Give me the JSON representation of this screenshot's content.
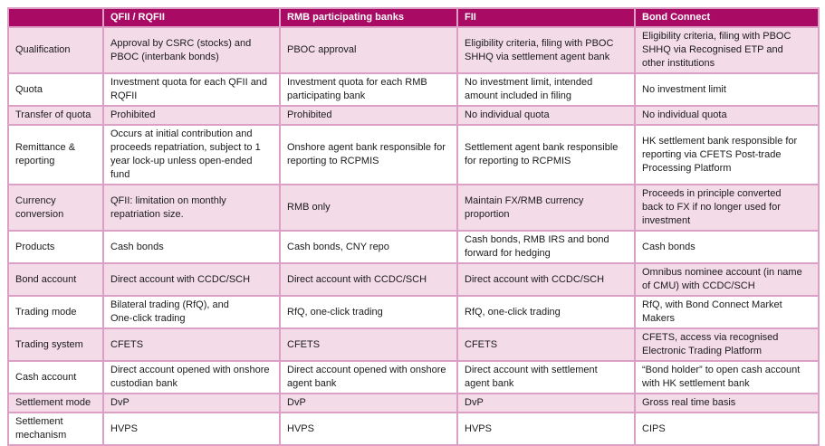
{
  "colors": {
    "header_bg": "#A80A64",
    "header_text": "#FFFFFF",
    "row_pink": "#F4DBE8",
    "row_white": "#FFFFFF",
    "border": "#DCA0C6",
    "body_text": "#1A1A1A"
  },
  "table": {
    "columns": {
      "label": "",
      "col1": "QFII / RQFII",
      "col2": "RMB participating banks",
      "col3": "FII",
      "col4": "Bond Connect"
    },
    "rows": [
      {
        "label": "Qualification",
        "cells": [
          "Approval by CSRC (stocks) and\nPBOC (interbank bonds)",
          "PBOC approval",
          "Eligibility criteria, filing with PBOC\nSHHQ via settlement agent bank",
          "Eligibility criteria, filing with PBOC\nSHHQ via Recognised ETP and\nother institutions"
        ]
      },
      {
        "label": "Quota",
        "cells": [
          "Investment quota for each QFII and\nRQFII",
          "Investment quota for each RMB\nparticipating bank",
          "No investment limit, intended\namount included in filing",
          "No investment limit"
        ]
      },
      {
        "label": "Transfer of quota",
        "cells": [
          "Prohibited",
          "Prohibited",
          "No individual quota",
          "No individual quota"
        ]
      },
      {
        "label": "Remittance &\nreporting",
        "cells": [
          "Occurs at initial contribution and\nproceeds repatriation, subject to 1\nyear lock-up unless open-ended\nfund",
          "Onshore agent bank responsible for\nreporting to RCPMIS",
          "Settlement agent bank responsible\nfor reporting to RCPMIS",
          "HK settlement bank responsible for\nreporting via CFETS Post-trade\nProcessing Platform"
        ]
      },
      {
        "label": "Currency\nconversion",
        "cells": [
          "QFII: limitation on monthly\nrepatriation size.",
          "RMB only",
          "Maintain FX/RMB currency\nproportion",
          "Proceeds in principle converted\nback to FX if no longer used for\ninvestment"
        ]
      },
      {
        "label": "Products",
        "cells": [
          "Cash bonds",
          "Cash bonds, CNY repo",
          "Cash bonds, RMB IRS and bond\nforward for hedging",
          "Cash bonds"
        ]
      },
      {
        "label": "Bond account",
        "cells": [
          "Direct account with CCDC/SCH",
          "Direct account with CCDC/SCH",
          "Direct account with CCDC/SCH",
          "Omnibus nominee account (in name\nof CMU) with CCDC/SCH"
        ]
      },
      {
        "label": "Trading mode",
        "cells": [
          "Bilateral trading (RfQ), and\nOne-click trading",
          "RfQ, one-click trading",
          "RfQ, one-click trading",
          "RfQ, with Bond Connect Market\nMakers"
        ]
      },
      {
        "label": "Trading system",
        "cells": [
          "CFETS",
          "CFETS",
          "CFETS",
          "CFETS, access via recognised\nElectronic Trading Platform"
        ]
      },
      {
        "label": "Cash account",
        "cells": [
          "Direct account opened with onshore\ncustodian bank",
          "Direct account opened with onshore\nagent bank",
          "Direct account with settlement\nagent bank",
          "“Bond holder” to open cash account\nwith HK settlement bank"
        ]
      },
      {
        "label": "Settlement mode",
        "cells": [
          "DvP",
          "DvP",
          "DvP",
          "Gross real time basis"
        ]
      },
      {
        "label": "Settlement\nmechanism",
        "cells": [
          "HVPS",
          "HVPS",
          "HVPS",
          "CIPS"
        ]
      }
    ]
  }
}
